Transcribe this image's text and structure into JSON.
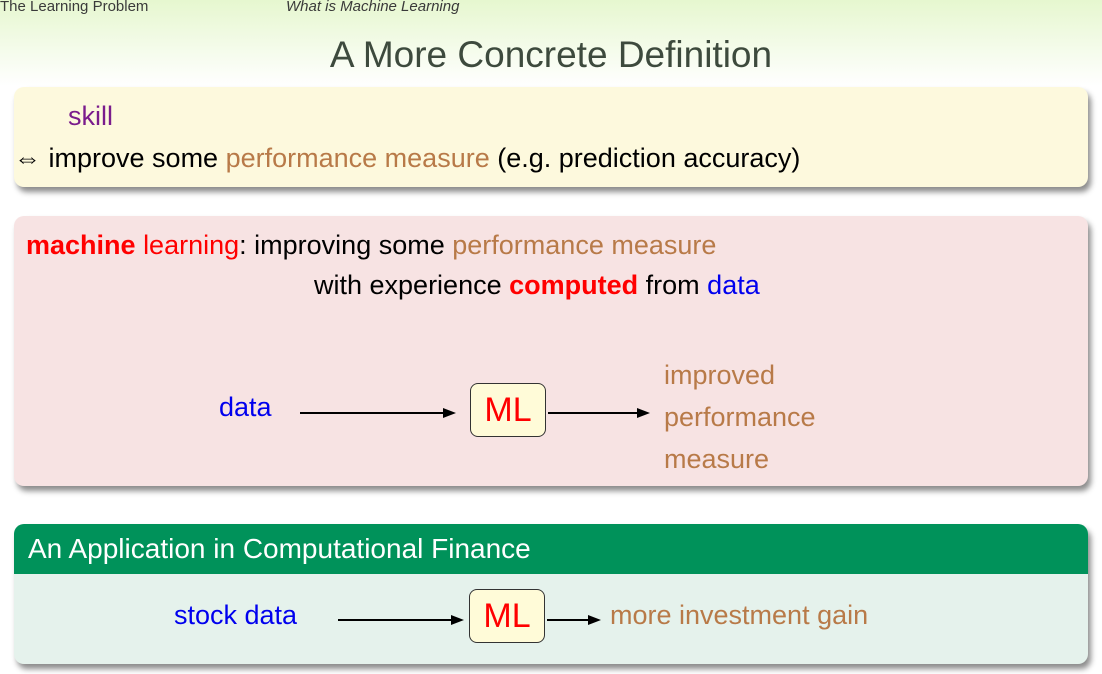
{
  "nav": {
    "section": "The Learning Problem",
    "subsection": "What is Machine Learning"
  },
  "title": "A More Concrete Definition",
  "skill_box": {
    "word": "skill",
    "equiv_symbol": "⇔",
    "line_pre": "improve some",
    "line_highlight": "performance measure",
    "line_post": "(e.g. prediction accuracy)"
  },
  "ml_box": {
    "term_bold": "machine",
    "term_rest": "learning",
    "colon": ":",
    "def_pre": "improving some",
    "def_highlight": "performance measure",
    "line2_pre": "with experience",
    "line2_bold": "computed",
    "line2_mid": "from",
    "line2_data": "data",
    "flow": {
      "input": "data",
      "node": "ML",
      "output_lines": [
        "improved",
        "performance",
        "measure"
      ]
    }
  },
  "app_box": {
    "header": "An Application in Computational Finance",
    "flow": {
      "input": "stock data",
      "node": "ML",
      "output": "more investment gain"
    }
  },
  "colors": {
    "highlight_brown": "#b87a48",
    "emphasis_red": "#ff0000",
    "data_blue": "#0000ee",
    "skill_purple": "#7a1c8c",
    "app_header_green": "#00925a"
  }
}
